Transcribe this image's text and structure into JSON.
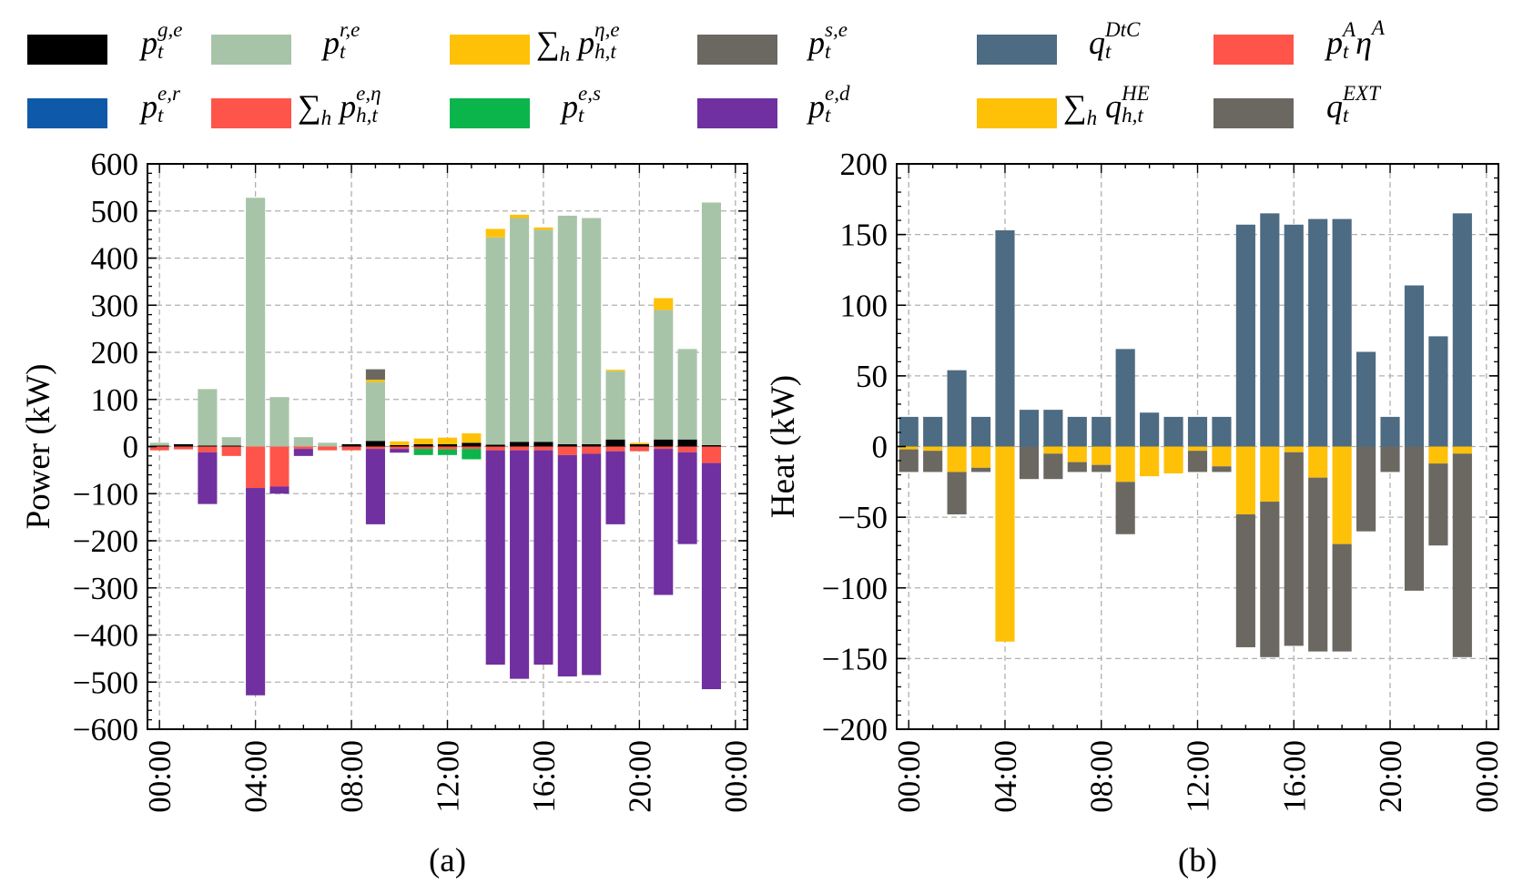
{
  "legend": {
    "items": [
      {
        "key": "pge",
        "color": "#000000",
        "base": "p",
        "sub": "t",
        "sup": "g,e",
        "sum": false
      },
      {
        "key": "pre",
        "color": "#a8c4a8",
        "base": "p",
        "sub": "t",
        "sup": "r,e",
        "sum": false
      },
      {
        "key": "peta_e",
        "color": "#ffc107",
        "base": "p",
        "sub": "h,t",
        "sup": "η,e",
        "sum": true
      },
      {
        "key": "pse",
        "color": "#6b6862",
        "base": "p",
        "sub": "t",
        "sup": "s,e",
        "sum": false
      },
      {
        "key": "qdtc",
        "color": "#4d6b82",
        "base": "q",
        "sub": "t",
        "sup": "DtC",
        "sum": false
      },
      {
        "key": "pAetaA",
        "color": "#ff5449",
        "base": "p",
        "sub": "t",
        "sup": "A",
        "sum": false,
        "tail": "η",
        "tailsup": "A"
      },
      {
        "key": "per",
        "color": "#0f5aa8",
        "base": "p",
        "sub": "t",
        "sup": "e,r",
        "sum": false
      },
      {
        "key": "pe_eta",
        "color": "#ff5449",
        "base": "p",
        "sub": "h,t",
        "sup": "e,η",
        "sum": true
      },
      {
        "key": "pes",
        "color": "#0bb54b",
        "base": "p",
        "sub": "t",
        "sup": "e,s",
        "sum": false
      },
      {
        "key": "ped",
        "color": "#7030a0",
        "base": "p",
        "sub": "t",
        "sup": "e,d",
        "sum": false
      },
      {
        "key": "qhe",
        "color": "#ffc107",
        "base": "q",
        "sub": "h,t",
        "sup": "HE",
        "sum": true
      },
      {
        "key": "qext",
        "color": "#6b6862",
        "base": "q",
        "sub": "t",
        "sup": "EXT",
        "sum": false
      }
    ],
    "sum_symbol": "∑",
    "sum_index": "h"
  },
  "chart_data": [
    {
      "type": "bar",
      "stacked": true,
      "panel_label": "(a)",
      "ylabel": "Power (kW)",
      "ylim": [
        -600,
        600
      ],
      "yticks": [
        "600",
        "500",
        "400",
        "300",
        "200",
        "100",
        "0",
        "−100",
        "−200",
        "−300",
        "−400",
        "−500",
        "−600"
      ],
      "ytick_values": [
        600,
        500,
        400,
        300,
        200,
        100,
        0,
        -100,
        -200,
        -300,
        -400,
        -500,
        -600
      ],
      "xticks": [
        "00:00",
        "04:00",
        "08:00",
        "12:00",
        "16:00",
        "20:00",
        "00:00"
      ],
      "xtick_hours": [
        0,
        4,
        8,
        12,
        16,
        20,
        24
      ],
      "grid": true,
      "hours": [
        0,
        1,
        2,
        3,
        4,
        5,
        6,
        7,
        8,
        9,
        10,
        11,
        12,
        13,
        14,
        15,
        16,
        17,
        18,
        19,
        20,
        21,
        22,
        23
      ],
      "positive_series": [
        {
          "name": "p_t^{g,e}",
          "color": "#000000",
          "values": [
            2,
            5,
            2,
            2,
            0,
            0,
            0,
            0,
            5,
            12,
            3,
            5,
            5,
            8,
            4,
            10,
            10,
            5,
            5,
            15,
            5,
            15,
            15,
            3
          ]
        },
        {
          "name": "p_t^{r,e}",
          "color": "#a8c4a8",
          "values": [
            6,
            0,
            120,
            18,
            528,
            105,
            20,
            8,
            0,
            125,
            0,
            0,
            0,
            0,
            440,
            475,
            450,
            485,
            480,
            145,
            0,
            275,
            192,
            515
          ]
        },
        {
          "name": "Σ_h p_{h,t}^{η,e}",
          "color": "#ffc107",
          "values": [
            0,
            0,
            0,
            0,
            0,
            0,
            0,
            0,
            0,
            5,
            8,
            12,
            14,
            20,
            18,
            7,
            5,
            0,
            0,
            3,
            3,
            25,
            0,
            0
          ]
        },
        {
          "name": "p_t^{s,e}",
          "color": "#6b6862",
          "values": [
            0,
            0,
            0,
            0,
            0,
            0,
            0,
            0,
            0,
            22,
            0,
            0,
            0,
            0,
            0,
            0,
            0,
            0,
            0,
            0,
            0,
            0,
            0,
            0
          ]
        }
      ],
      "negative_series": [
        {
          "name": "p_t^{e,r}",
          "color": "#0f5aa8",
          "values": [
            0,
            0,
            0,
            0,
            0,
            0,
            0,
            0,
            0,
            0,
            0,
            0,
            0,
            0,
            0,
            0,
            0,
            0,
            0,
            0,
            0,
            0,
            0,
            0
          ]
        },
        {
          "name": "Σ_h p_{h,t}^{e,η}",
          "color": "#ff5449",
          "values": [
            -8,
            -6,
            -12,
            -20,
            -88,
            -85,
            -5,
            -8,
            -8,
            -5,
            -5,
            -5,
            -6,
            -5,
            -8,
            -8,
            -8,
            -18,
            -15,
            -10,
            -10,
            -5,
            -12,
            -35
          ]
        },
        {
          "name": "p_t^{e,s}",
          "color": "#0bb54b",
          "values": [
            0,
            0,
            0,
            0,
            0,
            0,
            0,
            0,
            0,
            0,
            0,
            -13,
            -12,
            -22,
            0,
            0,
            0,
            0,
            0,
            0,
            0,
            0,
            0,
            0
          ]
        },
        {
          "name": "p_t^{e,d}",
          "color": "#7030a0",
          "values": [
            0,
            0,
            -110,
            0,
            -440,
            -15,
            -15,
            0,
            0,
            -160,
            -8,
            0,
            0,
            0,
            -455,
            -485,
            -455,
            -470,
            -470,
            -155,
            0,
            -310,
            -195,
            -480
          ]
        }
      ]
    },
    {
      "type": "bar",
      "stacked": true,
      "panel_label": "(b)",
      "ylabel": "Heat (kW)",
      "ylim": [
        -200,
        200
      ],
      "yticks": [
        "200",
        "150",
        "100",
        "50",
        "0",
        "−50",
        "−100",
        "−150",
        "−200"
      ],
      "ytick_values": [
        200,
        150,
        100,
        50,
        0,
        -50,
        -100,
        -150,
        -200
      ],
      "xticks": [
        "00:00",
        "04:00",
        "08:00",
        "12:00",
        "16:00",
        "20:00",
        "00:00"
      ],
      "xtick_hours": [
        0,
        4,
        8,
        12,
        16,
        20,
        24
      ],
      "grid": true,
      "hours": [
        0,
        1,
        2,
        3,
        4,
        5,
        6,
        7,
        8,
        9,
        10,
        11,
        12,
        13,
        14,
        15,
        16,
        17,
        18,
        19,
        20,
        21,
        22,
        23
      ],
      "positive_series": [
        {
          "name": "q_t^{DtC}",
          "color": "#4d6b82",
          "values": [
            21,
            21,
            54,
            21,
            153,
            26,
            26,
            21,
            21,
            69,
            24,
            21,
            21,
            21,
            157,
            165,
            157,
            161,
            161,
            67,
            21,
            114,
            78,
            165
          ]
        }
      ],
      "negative_series": [
        {
          "name": "Σ_h q_{h,t}^{HE}",
          "color": "#ffc107",
          "values": [
            -2,
            -3,
            -18,
            -15,
            -138,
            0,
            -5,
            -11,
            -13,
            -25,
            -21,
            -19,
            -3,
            -14,
            -48,
            -39,
            -4,
            -22,
            -69,
            0,
            0,
            0,
            -12,
            -5
          ]
        },
        {
          "name": "q_t^{EXT}",
          "color": "#6b6862",
          "values": [
            -16,
            -15,
            -30,
            -3,
            0,
            -23,
            -18,
            -7,
            -5,
            -37,
            0,
            0,
            -15,
            -4,
            -94,
            -110,
            -137,
            -123,
            -76,
            -60,
            -18,
            -102,
            -58,
            -144
          ]
        }
      ]
    }
  ]
}
